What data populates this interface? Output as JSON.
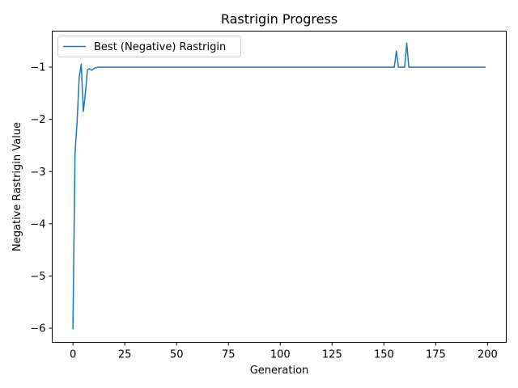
{
  "chart_data": {
    "type": "line",
    "title": "Rastrigin Progress",
    "xlabel": "Generation",
    "ylabel": "Negative Rastrigin Value",
    "xlim": [
      -10,
      209
    ],
    "ylim": [
      -6.27,
      -0.31
    ],
    "xticks": [
      0,
      25,
      50,
      75,
      100,
      125,
      150,
      175,
      200
    ],
    "yticks": [
      -6,
      -5,
      -4,
      -3,
      -2,
      -1
    ],
    "ytick_labels": [
      "−6",
      "−5",
      "−4",
      "−3",
      "−2",
      "−1"
    ],
    "grid": false,
    "legend_position": "upper-left",
    "series": [
      {
        "name": "Best (Negative) Rastrigin",
        "color": "#1f77b4",
        "x": [
          0,
          1,
          2,
          3,
          4,
          5,
          6,
          7,
          8,
          9,
          10,
          11,
          12,
          13,
          14,
          15,
          20,
          50,
          100,
          150,
          155,
          156,
          157,
          158,
          159,
          160,
          161,
          162,
          163,
          170,
          199
        ],
        "y": [
          -6.02,
          -2.65,
          -2.05,
          -1.2,
          -0.94,
          -1.85,
          -1.5,
          -1.05,
          -1.03,
          -1.06,
          -1.03,
          -1.01,
          -1.0,
          -1.0,
          -1.0,
          -1.0,
          -1.0,
          -1.0,
          -1.0,
          -1.0,
          -1.0,
          -0.69,
          -1.0,
          -1.0,
          -1.0,
          -1.0,
          -0.54,
          -1.0,
          -1.0,
          -1.0,
          -1.0
        ]
      }
    ]
  }
}
